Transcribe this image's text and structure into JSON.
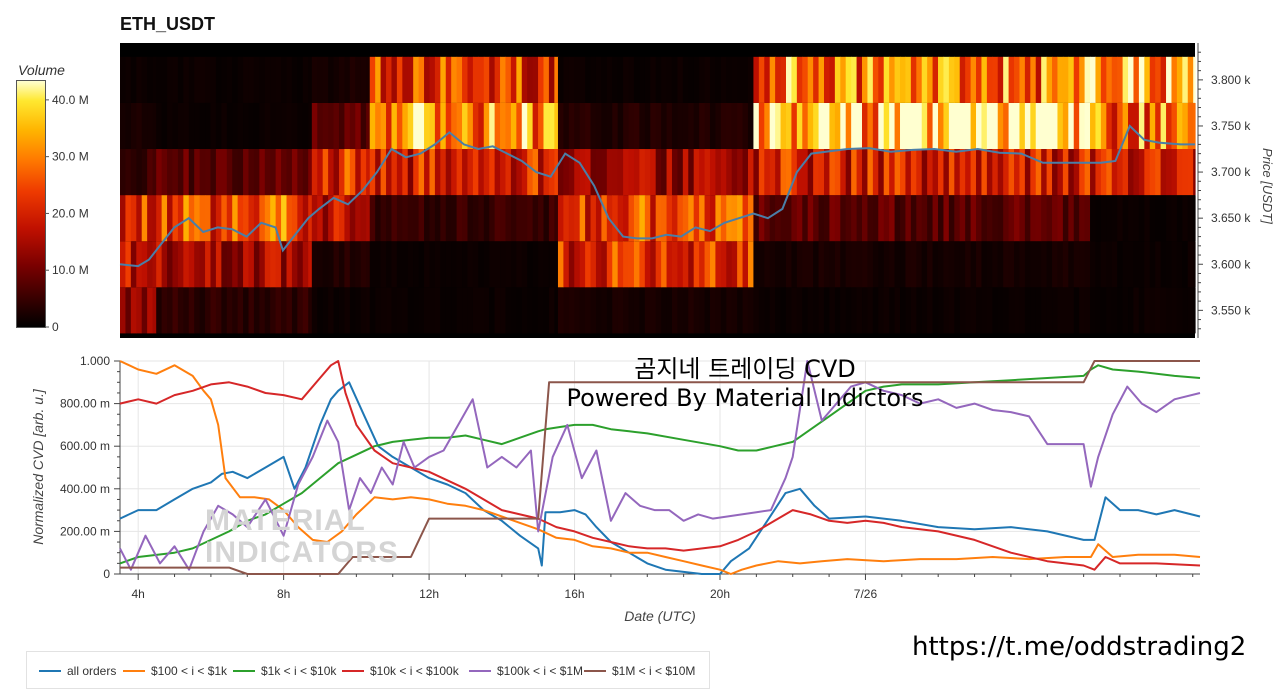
{
  "header": {
    "title": "ETH_USDT"
  },
  "colorbar": {
    "title": "Volume",
    "ticks": [
      "40.0 M",
      "30.0 M",
      "20.0 M",
      "10.0 M",
      "0"
    ],
    "tick_values": [
      40,
      30,
      20,
      10,
      0
    ]
  },
  "overlay": {
    "line1": "곰지네 트레이딩 CVD",
    "line2": "Powered By Material Indictors"
  },
  "watermark": {
    "line1": "MATERIAL",
    "line2": "INDICATORS"
  },
  "footer": {
    "url": "https://t.me/oddstrading2"
  },
  "colors": {
    "all_orders": "#1f77b4",
    "s100_1k": "#ff7f0e",
    "s1k_10k": "#2ca02c",
    "s10k_100k": "#d62728",
    "s100k_1M": "#9467bd",
    "s1M_10M": "#8c564b",
    "price_line": "#4a7fa8"
  },
  "chart_data": [
    {
      "type": "heatmap",
      "title": "ETH_USDT",
      "ylabel": "Price [USDT]",
      "yticks": [
        "3.800 k",
        "3.750 k",
        "3.700 k",
        "3.650 k",
        "3.600 k",
        "3.550 k"
      ],
      "ytick_values": [
        3800,
        3750,
        3700,
        3650,
        3600,
        3550
      ],
      "ylim": [
        3520,
        3840
      ],
      "xlim_hours": [
        3.5,
        33.2
      ],
      "price_bands": [
        3525,
        3575,
        3625,
        3675,
        3725,
        3775,
        3825
      ],
      "heat_segments": [
        {
          "from": 3.5,
          "to": 4.5,
          "band_volumes_M": [
            14,
            18,
            22,
            5,
            2,
            1
          ]
        },
        {
          "from": 4.5,
          "to": 8.8,
          "band_volumes_M": [
            4,
            15,
            26,
            8,
            1,
            1
          ]
        },
        {
          "from": 8.8,
          "to": 10.4,
          "band_volumes_M": [
            1,
            3,
            18,
            22,
            8,
            2
          ]
        },
        {
          "from": 10.4,
          "to": 15.6,
          "band_volumes_M": [
            1,
            1,
            5,
            20,
            34,
            24
          ]
        },
        {
          "from": 15.6,
          "to": 21.0,
          "band_volumes_M": [
            2,
            22,
            24,
            14,
            3,
            1
          ]
        },
        {
          "from": 21.0,
          "to": 30.3,
          "band_volumes_M": [
            1,
            2,
            8,
            20,
            38,
            30
          ]
        },
        {
          "from": 30.3,
          "to": 33.2,
          "band_volumes_M": [
            1,
            1,
            1,
            20,
            30,
            36
          ]
        }
      ],
      "price_series": {
        "x_hours": [
          3.5,
          4.0,
          4.3,
          4.6,
          5.0,
          5.4,
          5.8,
          6.2,
          6.6,
          7.0,
          7.4,
          7.8,
          8.0,
          8.3,
          8.7,
          9.0,
          9.4,
          9.8,
          10.2,
          10.6,
          11.0,
          11.4,
          11.8,
          12.2,
          12.6,
          13.0,
          13.4,
          13.8,
          14.2,
          14.6,
          15.0,
          15.4,
          15.8,
          16.2,
          16.6,
          17.0,
          17.4,
          17.8,
          18.2,
          18.6,
          19.0,
          19.4,
          19.8,
          20.2,
          20.6,
          21.0,
          21.4,
          21.8,
          22.2,
          22.6,
          23.0,
          23.6,
          24.2,
          24.8,
          25.4,
          26.0,
          26.6,
          27.2,
          27.8,
          28.4,
          29.0,
          29.6,
          30.2,
          30.6,
          31.0,
          31.4,
          31.8,
          32.2,
          32.8,
          33.2
        ],
        "price": [
          3600,
          3598,
          3605,
          3620,
          3640,
          3650,
          3635,
          3640,
          3638,
          3630,
          3645,
          3640,
          3615,
          3630,
          3650,
          3660,
          3672,
          3665,
          3680,
          3700,
          3725,
          3716,
          3720,
          3730,
          3743,
          3730,
          3725,
          3728,
          3720,
          3712,
          3700,
          3695,
          3720,
          3710,
          3685,
          3650,
          3630,
          3628,
          3628,
          3632,
          3630,
          3640,
          3636,
          3645,
          3650,
          3655,
          3650,
          3660,
          3700,
          3720,
          3722,
          3725,
          3726,
          3722,
          3724,
          3725,
          3722,
          3725,
          3721,
          3720,
          3710,
          3710,
          3710,
          3710,
          3712,
          3750,
          3735,
          3732,
          3730,
          3730
        ]
      }
    },
    {
      "type": "line",
      "xlabel": "Date (UTC)",
      "ylabel": "Normalized CVD [arb. u.]",
      "xticks": [
        "4h",
        "8h",
        "12h",
        "16h",
        "20h",
        "7/26"
      ],
      "xtick_hours": [
        4,
        8,
        12,
        16,
        20,
        24
      ],
      "xlim_hours": [
        3.5,
        33.2
      ],
      "yticks": [
        "1.000",
        "800.00 m",
        "600.00 m",
        "400.00 m",
        "200.00 m",
        "0"
      ],
      "ytick_values": [
        1.0,
        0.8,
        0.6,
        0.4,
        0.2,
        0.0
      ],
      "ylim": [
        0,
        1
      ],
      "grid": true,
      "legend_position": "bottom",
      "series": [
        {
          "name": "all orders",
          "color_key": "all_orders",
          "x": [
            3.5,
            4.0,
            4.5,
            5.0,
            5.5,
            6.0,
            6.3,
            6.6,
            7.0,
            7.5,
            8.0,
            8.3,
            8.6,
            9.0,
            9.3,
            9.5,
            9.8,
            10.2,
            10.6,
            11.0,
            11.5,
            12.0,
            12.5,
            13.0,
            13.5,
            14.0,
            14.5,
            15.0,
            15.1,
            15.2,
            15.6,
            16.0,
            16.3,
            16.6,
            17.0,
            17.5,
            18.0,
            18.5,
            19.0,
            19.5,
            20.0,
            20.3,
            20.8,
            21.3,
            21.8,
            22.2,
            22.6,
            23.0,
            24.0,
            25.0,
            26.0,
            27.0,
            28.0,
            29.0,
            30.0,
            30.2,
            30.3,
            30.6,
            31.0,
            31.5,
            32.0,
            32.5,
            33.2
          ],
          "y": [
            0.26,
            0.3,
            0.3,
            0.35,
            0.4,
            0.43,
            0.47,
            0.48,
            0.45,
            0.5,
            0.55,
            0.4,
            0.5,
            0.7,
            0.82,
            0.86,
            0.9,
            0.75,
            0.6,
            0.55,
            0.5,
            0.45,
            0.42,
            0.38,
            0.3,
            0.25,
            0.18,
            0.12,
            0.04,
            0.29,
            0.29,
            0.3,
            0.28,
            0.22,
            0.15,
            0.1,
            0.05,
            0.02,
            0.01,
            0.0,
            0.0,
            0.06,
            0.12,
            0.25,
            0.38,
            0.4,
            0.32,
            0.26,
            0.27,
            0.25,
            0.22,
            0.21,
            0.22,
            0.2,
            0.16,
            0.16,
            0.16,
            0.36,
            0.3,
            0.3,
            0.28,
            0.3,
            0.27
          ]
        },
        {
          "name": "$100 < i < $1k",
          "color_key": "s100_1k",
          "x": [
            3.5,
            4.0,
            4.5,
            5.0,
            5.5,
            5.8,
            6.0,
            6.2,
            6.4,
            6.8,
            7.2,
            7.6,
            8.0,
            8.4,
            8.8,
            9.2,
            9.6,
            10.0,
            10.5,
            11.0,
            11.5,
            12.0,
            12.5,
            13.0,
            13.5,
            14.0,
            14.5,
            15.0,
            15.5,
            16.0,
            16.5,
            17.0,
            17.5,
            18.0,
            18.5,
            19.0,
            19.5,
            20.0,
            20.3,
            20.6,
            21.0,
            21.6,
            22.2,
            22.8,
            23.5,
            24.5,
            25.5,
            26.5,
            27.5,
            28.5,
            29.5,
            30.0,
            30.2,
            30.4,
            30.8,
            31.5,
            32.5,
            33.2
          ],
          "y": [
            1.0,
            0.96,
            0.94,
            0.98,
            0.93,
            0.86,
            0.82,
            0.7,
            0.45,
            0.36,
            0.36,
            0.35,
            0.3,
            0.22,
            0.16,
            0.15,
            0.2,
            0.28,
            0.36,
            0.35,
            0.36,
            0.35,
            0.33,
            0.32,
            0.3,
            0.27,
            0.24,
            0.21,
            0.17,
            0.16,
            0.13,
            0.12,
            0.1,
            0.1,
            0.08,
            0.06,
            0.04,
            0.02,
            0.0,
            0.02,
            0.04,
            0.06,
            0.05,
            0.06,
            0.07,
            0.06,
            0.07,
            0.07,
            0.08,
            0.07,
            0.08,
            0.08,
            0.08,
            0.14,
            0.08,
            0.09,
            0.09,
            0.08
          ]
        },
        {
          "name": "$1k < i < $10k",
          "color_key": "s1k_10k",
          "x": [
            3.5,
            4.0,
            5.0,
            5.5,
            6.0,
            6.5,
            7.0,
            7.5,
            8.0,
            8.5,
            9.0,
            9.5,
            10.0,
            10.5,
            11.0,
            11.5,
            12.0,
            12.5,
            13.0,
            13.5,
            14.0,
            14.5,
            15.0,
            15.2,
            15.6,
            16.0,
            16.5,
            17.0,
            17.5,
            18.0,
            19.0,
            20.0,
            20.5,
            21.0,
            21.5,
            22.0,
            22.5,
            23.0,
            23.5,
            24.0,
            24.5,
            25.0,
            26.0,
            27.0,
            28.0,
            29.0,
            30.0,
            30.2,
            30.4,
            30.8,
            31.5,
            32.5,
            33.2
          ],
          "y": [
            0.05,
            0.08,
            0.1,
            0.12,
            0.16,
            0.2,
            0.25,
            0.28,
            0.33,
            0.38,
            0.45,
            0.52,
            0.56,
            0.6,
            0.62,
            0.63,
            0.64,
            0.64,
            0.65,
            0.63,
            0.61,
            0.64,
            0.67,
            0.68,
            0.69,
            0.7,
            0.7,
            0.68,
            0.67,
            0.66,
            0.63,
            0.6,
            0.58,
            0.58,
            0.6,
            0.62,
            0.68,
            0.74,
            0.8,
            0.86,
            0.88,
            0.89,
            0.89,
            0.9,
            0.91,
            0.92,
            0.93,
            0.96,
            0.98,
            0.96,
            0.95,
            0.93,
            0.92
          ]
        },
        {
          "name": "$10k < i < $100k",
          "color_key": "s10k_100k",
          "x": [
            3.5,
            4.0,
            4.5,
            5.0,
            5.5,
            6.0,
            6.5,
            7.0,
            7.5,
            8.0,
            8.5,
            9.0,
            9.3,
            9.5,
            9.7,
            10.0,
            10.5,
            11.0,
            11.5,
            12.0,
            12.5,
            13.0,
            13.5,
            14.0,
            14.5,
            15.0,
            15.5,
            16.0,
            16.5,
            17.0,
            17.5,
            18.0,
            18.5,
            19.0,
            20.0,
            20.5,
            21.0,
            21.5,
            22.0,
            22.5,
            23.0,
            23.5,
            24.0,
            24.5,
            25.0,
            26.0,
            27.0,
            28.0,
            29.0,
            30.0,
            30.3,
            30.6,
            31.0,
            32.0,
            33.2
          ],
          "y": [
            0.8,
            0.82,
            0.8,
            0.84,
            0.86,
            0.89,
            0.9,
            0.88,
            0.85,
            0.84,
            0.82,
            0.92,
            0.98,
            1.0,
            0.85,
            0.7,
            0.58,
            0.52,
            0.5,
            0.48,
            0.44,
            0.4,
            0.35,
            0.3,
            0.28,
            0.26,
            0.22,
            0.2,
            0.17,
            0.15,
            0.13,
            0.12,
            0.12,
            0.11,
            0.13,
            0.16,
            0.2,
            0.25,
            0.3,
            0.28,
            0.25,
            0.24,
            0.25,
            0.24,
            0.22,
            0.2,
            0.16,
            0.1,
            0.06,
            0.04,
            0.02,
            0.08,
            0.05,
            0.05,
            0.04
          ]
        },
        {
          "name": "$100k < i < $1M",
          "color_key": "s100k_1M",
          "x": [
            3.5,
            3.8,
            4.2,
            4.6,
            5.0,
            5.4,
            5.8,
            6.2,
            6.6,
            7.0,
            7.5,
            8.0,
            8.4,
            8.8,
            9.2,
            9.5,
            9.8,
            10.1,
            10.4,
            10.7,
            11.0,
            11.3,
            11.6,
            12.0,
            12.4,
            12.8,
            13.2,
            13.6,
            14.0,
            14.4,
            14.8,
            15.0,
            15.4,
            15.8,
            16.2,
            16.6,
            17.0,
            17.4,
            17.8,
            18.2,
            18.6,
            19.0,
            19.4,
            19.8,
            20.2,
            20.6,
            21.0,
            21.4,
            21.8,
            22.0,
            22.4,
            22.8,
            23.2,
            23.6,
            24.0,
            24.5,
            25.0,
            25.5,
            26.0,
            26.5,
            27.0,
            27.5,
            28.0,
            28.5,
            29.0,
            29.5,
            30.0,
            30.2,
            30.4,
            30.8,
            31.2,
            31.6,
            32.0,
            32.5,
            33.2
          ],
          "y": [
            0.12,
            0.02,
            0.18,
            0.05,
            0.13,
            0.02,
            0.2,
            0.32,
            0.28,
            0.22,
            0.35,
            0.18,
            0.42,
            0.55,
            0.72,
            0.62,
            0.3,
            0.45,
            0.38,
            0.5,
            0.42,
            0.62,
            0.5,
            0.55,
            0.58,
            0.7,
            0.82,
            0.5,
            0.55,
            0.5,
            0.58,
            0.2,
            0.55,
            0.7,
            0.45,
            0.58,
            0.25,
            0.38,
            0.32,
            0.3,
            0.3,
            0.25,
            0.28,
            0.26,
            0.27,
            0.28,
            0.29,
            0.3,
            0.45,
            0.55,
            1.0,
            0.72,
            0.8,
            0.88,
            0.9,
            0.86,
            0.84,
            0.8,
            0.82,
            0.78,
            0.8,
            0.77,
            0.76,
            0.74,
            0.61,
            0.61,
            0.61,
            0.41,
            0.55,
            0.75,
            0.88,
            0.8,
            0.76,
            0.82,
            0.85
          ]
        },
        {
          "name": "$1M < i < $10M",
          "color_key": "s1M_10M",
          "x": [
            3.5,
            4.0,
            5.0,
            6.0,
            6.5,
            7.0,
            8.0,
            9.0,
            9.5,
            9.9,
            10.5,
            11.5,
            12.0,
            12.5,
            13.0,
            14.0,
            15.0,
            15.3,
            15.5,
            16.0,
            17.0,
            18.0,
            19.0,
            20.0,
            21.0,
            22.0,
            23.0,
            24.0,
            25.0,
            26.0,
            27.0,
            28.0,
            29.0,
            30.0,
            30.3,
            30.6,
            31.0,
            32.0,
            33.2
          ],
          "y": [
            0.03,
            0.03,
            0.03,
            0.03,
            0.03,
            0.0,
            0.0,
            0.0,
            0.0,
            0.08,
            0.08,
            0.08,
            0.26,
            0.26,
            0.26,
            0.26,
            0.26,
            0.9,
            0.9,
            0.9,
            0.9,
            0.9,
            0.9,
            0.9,
            0.9,
            0.9,
            0.9,
            0.9,
            0.9,
            0.9,
            0.9,
            0.9,
            0.9,
            0.9,
            1.0,
            1.0,
            1.0,
            1.0,
            1.0
          ]
        }
      ]
    }
  ]
}
